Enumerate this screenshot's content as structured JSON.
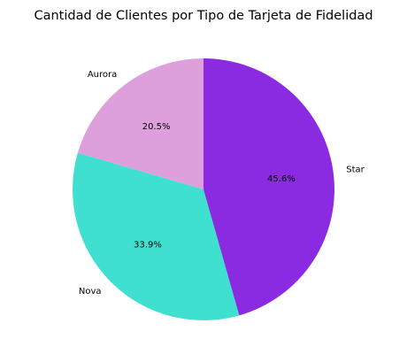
{
  "chart_data": {
    "type": "pie",
    "title": "Cantidad de Clientes por Tipo de Tarjeta de Fidelidad",
    "start_angle_deg": 90,
    "direction": "counterclockwise",
    "slices": [
      {
        "label": "Aurora",
        "value": 20.5,
        "pct_label": "20.5%",
        "color": "#DDA0DD"
      },
      {
        "label": "Nova",
        "value": 33.9,
        "pct_label": "33.9%",
        "color": "#40E0D0"
      },
      {
        "label": "Star",
        "value": 45.6,
        "pct_label": "45.6%",
        "color": "#8A2BE2"
      }
    ]
  }
}
